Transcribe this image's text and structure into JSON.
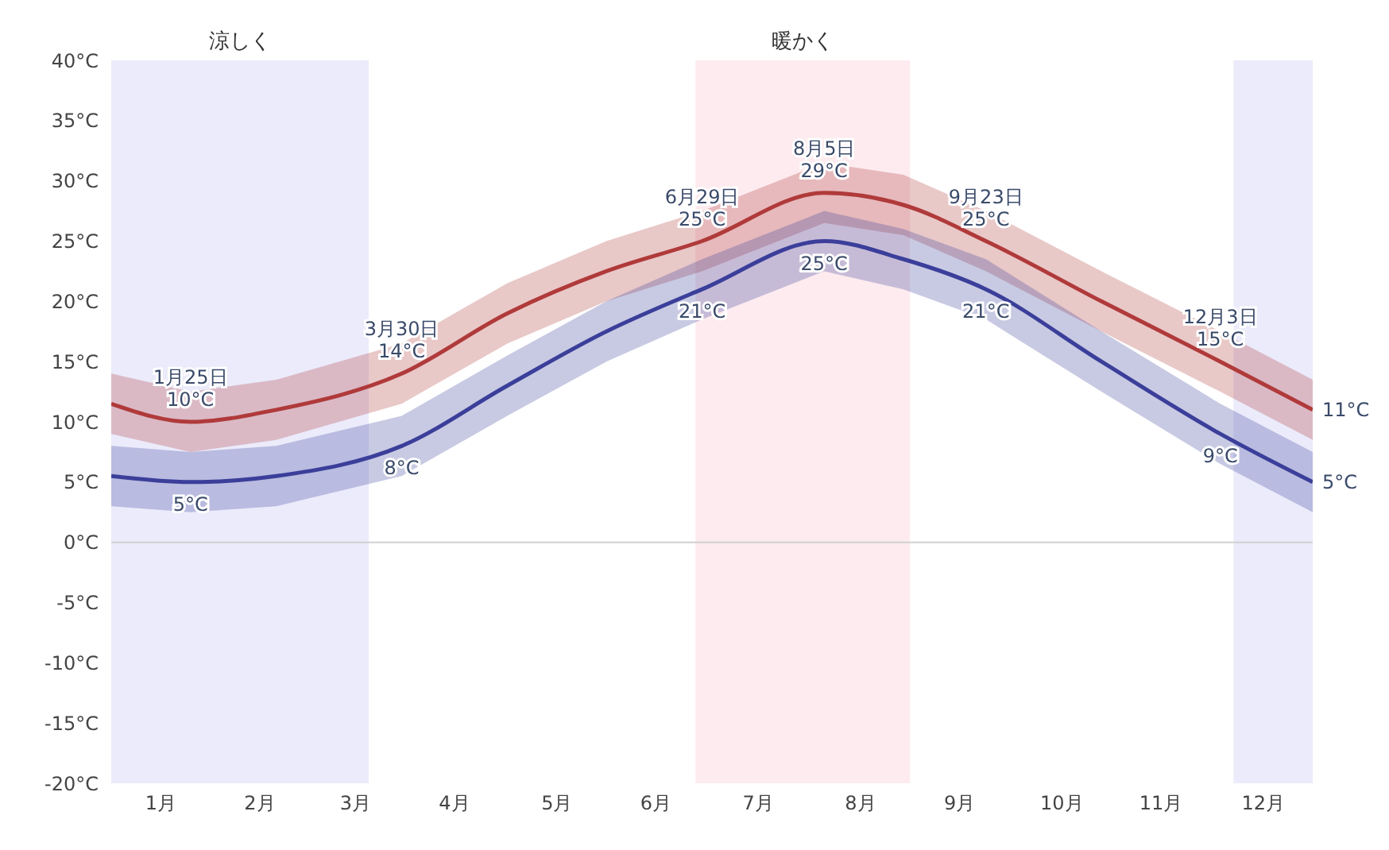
{
  "chart_data": {
    "type": "line",
    "x": [
      "--01-01",
      "--01-25",
      "--02-20",
      "--03-30",
      "--05-01",
      "--05-31",
      "--06-29",
      "--08-05",
      "--08-29",
      "--09-23",
      "--10-28",
      "--12-03",
      "--12-31"
    ],
    "series": [
      {
        "color": "#b03a3a",
        "values": [
          11.5,
          10,
          11,
          14,
          19,
          22.5,
          25,
          29,
          28,
          25,
          20,
          15,
          11
        ],
        "lower": [
          9,
          7.5,
          8.5,
          11.5,
          16.5,
          20,
          22.5,
          26.5,
          25.5,
          22.5,
          17.5,
          12.5,
          8.5
        ],
        "upper": [
          14,
          12.5,
          13.5,
          16.5,
          21.5,
          25,
          27.5,
          31.5,
          30.5,
          27.5,
          22.5,
          17.5,
          13.5
        ]
      },
      {
        "color": "#3b3f9a",
        "values": [
          5.5,
          5,
          5.5,
          8,
          13,
          17.5,
          21,
          25,
          23.5,
          21,
          15,
          9,
          5
        ],
        "lower": [
          3,
          2.5,
          3,
          5.5,
          10.5,
          15,
          18.5,
          22.5,
          21,
          18.5,
          12.5,
          6.5,
          2.5
        ],
        "upper": [
          8,
          7.5,
          8,
          10.5,
          15.5,
          20,
          23.5,
          27.5,
          26,
          23.5,
          17.5,
          11.5,
          7.5
        ]
      }
    ],
    "xlim": [
      "--01-01",
      "--12-31"
    ],
    "xticks": [
      {
        "value": "--01-16",
        "label": "1月"
      },
      {
        "value": "--02-15",
        "label": "2月"
      },
      {
        "value": "--03-16",
        "label": "3月"
      },
      {
        "value": "--04-15",
        "label": "4月"
      },
      {
        "value": "--05-16",
        "label": "5月"
      },
      {
        "value": "--06-15",
        "label": "6月"
      },
      {
        "value": "--07-16",
        "label": "7月"
      },
      {
        "value": "--08-16",
        "label": "8月"
      },
      {
        "value": "--09-15",
        "label": "9月"
      },
      {
        "value": "--10-16",
        "label": "10月"
      },
      {
        "value": "--11-15",
        "label": "11月"
      },
      {
        "value": "--12-16",
        "label": "12月"
      }
    ],
    "ylim": [
      -20,
      40
    ],
    "yticks": [
      {
        "value": -20,
        "label": "-20°C"
      },
      {
        "value": -15,
        "label": "-15°C"
      },
      {
        "value": -10,
        "label": "-10°C"
      },
      {
        "value": -5,
        "label": "-5°C"
      },
      {
        "value": 0,
        "label": "0°C"
      },
      {
        "value": 5,
        "label": "5°C"
      },
      {
        "value": 10,
        "label": "10°C"
      },
      {
        "value": 15,
        "label": "15°C"
      },
      {
        "value": 20,
        "label": "20°C"
      },
      {
        "value": 25,
        "label": "25°C"
      },
      {
        "value": 30,
        "label": "30°C"
      },
      {
        "value": 35,
        "label": "35°C"
      },
      {
        "value": 40,
        "label": "40°C"
      }
    ],
    "bands": [
      {
        "axis": "x",
        "from": "--01-01",
        "to": "--03-20",
        "label": "涼しく",
        "color": "#ebebfb"
      },
      {
        "axis": "x",
        "from": "--06-27",
        "to": "--08-31",
        "label": "暖かく",
        "color": "#fdebef"
      },
      {
        "axis": "x",
        "from": "--12-07",
        "to": "--12-31",
        "label": null,
        "color": "#ebebfb"
      }
    ],
    "ref_lines": [
      {
        "axis": "y",
        "value": 0,
        "color": "#d0d0d0"
      }
    ],
    "annotations": [
      {
        "text": "1月25日",
        "x": "--01-25",
        "y": 10
      },
      {
        "text": "10°C",
        "x": "--01-25",
        "y": 10
      },
      {
        "text": "5°C",
        "x": "--01-25",
        "y": 5
      },
      {
        "text": "3月30日",
        "x": "--03-30",
        "y": 14
      },
      {
        "text": "14°C",
        "x": "--03-30",
        "y": 14
      },
      {
        "text": "8°C",
        "x": "--03-30",
        "y": 8
      },
      {
        "text": "6月29日",
        "x": "--06-29",
        "y": 25
      },
      {
        "text": "25°C",
        "x": "--06-29",
        "y": 25
      },
      {
        "text": "21°C",
        "x": "--06-29",
        "y": 21
      },
      {
        "text": "8月5日",
        "x": "--08-05",
        "y": 29
      },
      {
        "text": "29°C",
        "x": "--08-05",
        "y": 29
      },
      {
        "text": "25°C",
        "x": "--08-05",
        "y": 25
      },
      {
        "text": "9月23日",
        "x": "--09-23",
        "y": 25
      },
      {
        "text": "25°C",
        "x": "--09-23",
        "y": 25
      },
      {
        "text": "21°C",
        "x": "--09-23",
        "y": 21
      },
      {
        "text": "12月3日",
        "x": "--12-03",
        "y": 15
      },
      {
        "text": "15°C",
        "x": "--12-03",
        "y": 15
      },
      {
        "text": "9°C",
        "x": "--12-03",
        "y": 9
      },
      {
        "text": "11°C",
        "x": "--12-31",
        "y": 11
      },
      {
        "text": "5°C",
        "x": "--12-31",
        "y": 5
      }
    ]
  }
}
